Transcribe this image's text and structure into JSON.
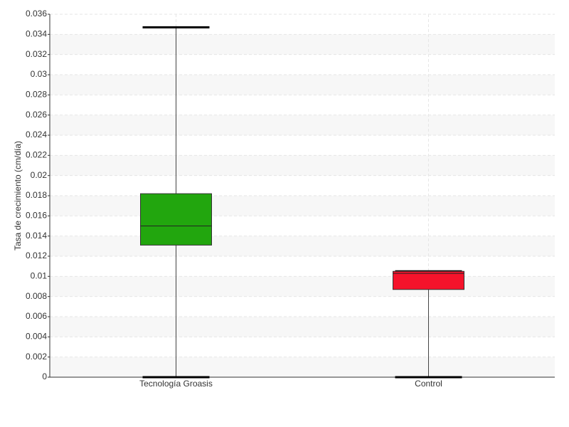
{
  "chart_data": {
    "type": "box",
    "y_label": "Tasa de crecimiento (cm/día)",
    "categories": [
      "Tecnología Groasis",
      "Control"
    ],
    "boxes": [
      {
        "color": "#22a60e",
        "min": 0,
        "q1": 0.0131,
        "median": 0.015,
        "q3": 0.0182,
        "max": 0.0347
      },
      {
        "color": "#f5132b",
        "min": 0,
        "q1": 0.0087,
        "median": 0.0103,
        "q3": 0.0105,
        "max": 0.0105
      }
    ],
    "ylim": [
      0,
      0.036
    ],
    "yticks": [
      0,
      0.002,
      0.004,
      0.006,
      0.008,
      0.01,
      0.012,
      0.014,
      0.016,
      0.018,
      0.02,
      0.022,
      0.024,
      0.026,
      0.028,
      0.03,
      0.032,
      0.034,
      0.036
    ],
    "grid": true
  }
}
